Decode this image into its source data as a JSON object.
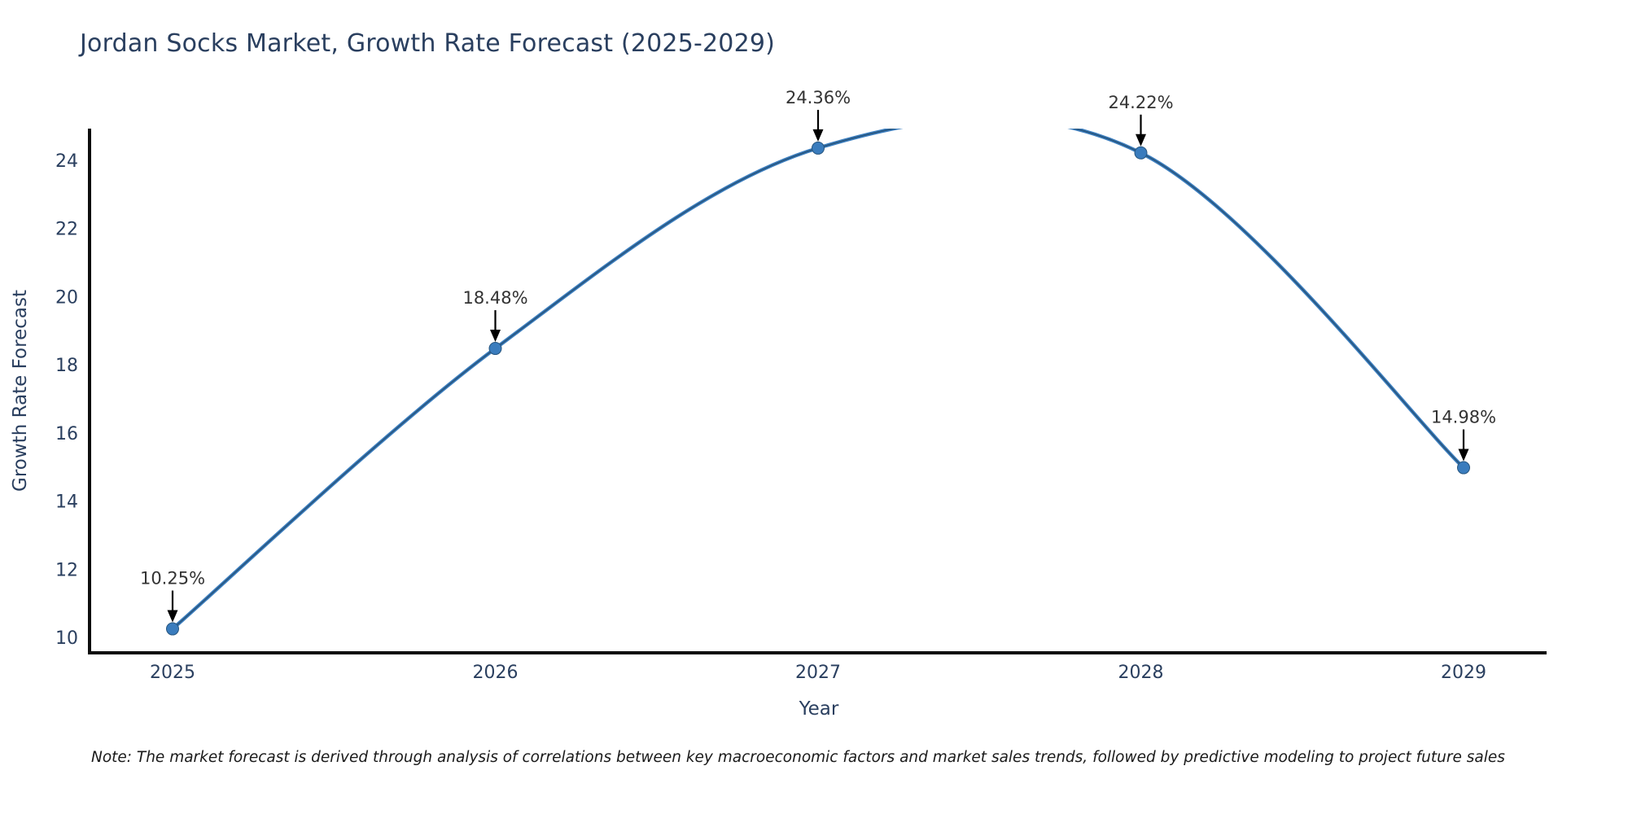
{
  "title": "Jordan Socks Market, Growth Rate Forecast (2025-2029)",
  "note": "Note: The market forecast is derived through analysis of correlations between key macroeconomic factors and market sales trends, followed by predictive modeling to project future sales",
  "chart_data": {
    "type": "line",
    "title": "Jordan Socks Market, Growth Rate Forecast (2025-2029)",
    "xlabel": "Year",
    "ylabel": "Growth Rate Forecast",
    "x": [
      2025,
      2026,
      2027,
      2028,
      2029
    ],
    "series": [
      {
        "name": "Growth Rate Forecast",
        "values": [
          10.25,
          18.48,
          24.36,
          24.22,
          14.98
        ]
      }
    ],
    "point_labels": [
      "10.25%",
      "18.48%",
      "24.36%",
      "24.22%",
      "14.98%"
    ],
    "xticks": [
      "2025",
      "2026",
      "2027",
      "2028",
      "2029"
    ],
    "yticks": [
      10,
      12,
      14,
      16,
      18,
      20,
      22,
      24
    ],
    "ylim": [
      9.55,
      24.93
    ],
    "line_shape": "spline",
    "grid": false,
    "legend_position": "none",
    "annotation_arrows": "down",
    "clipped_at_top": true,
    "colors": {
      "line": "#3d7fc0",
      "line_core": "#27567f",
      "marker": "#3a7cbd",
      "annotation_text": "#333333",
      "arrow": "#000000",
      "axis": "#0d0d0d",
      "tick_text": "#2a3f5f",
      "title_text": "#2a3f5f"
    }
  }
}
